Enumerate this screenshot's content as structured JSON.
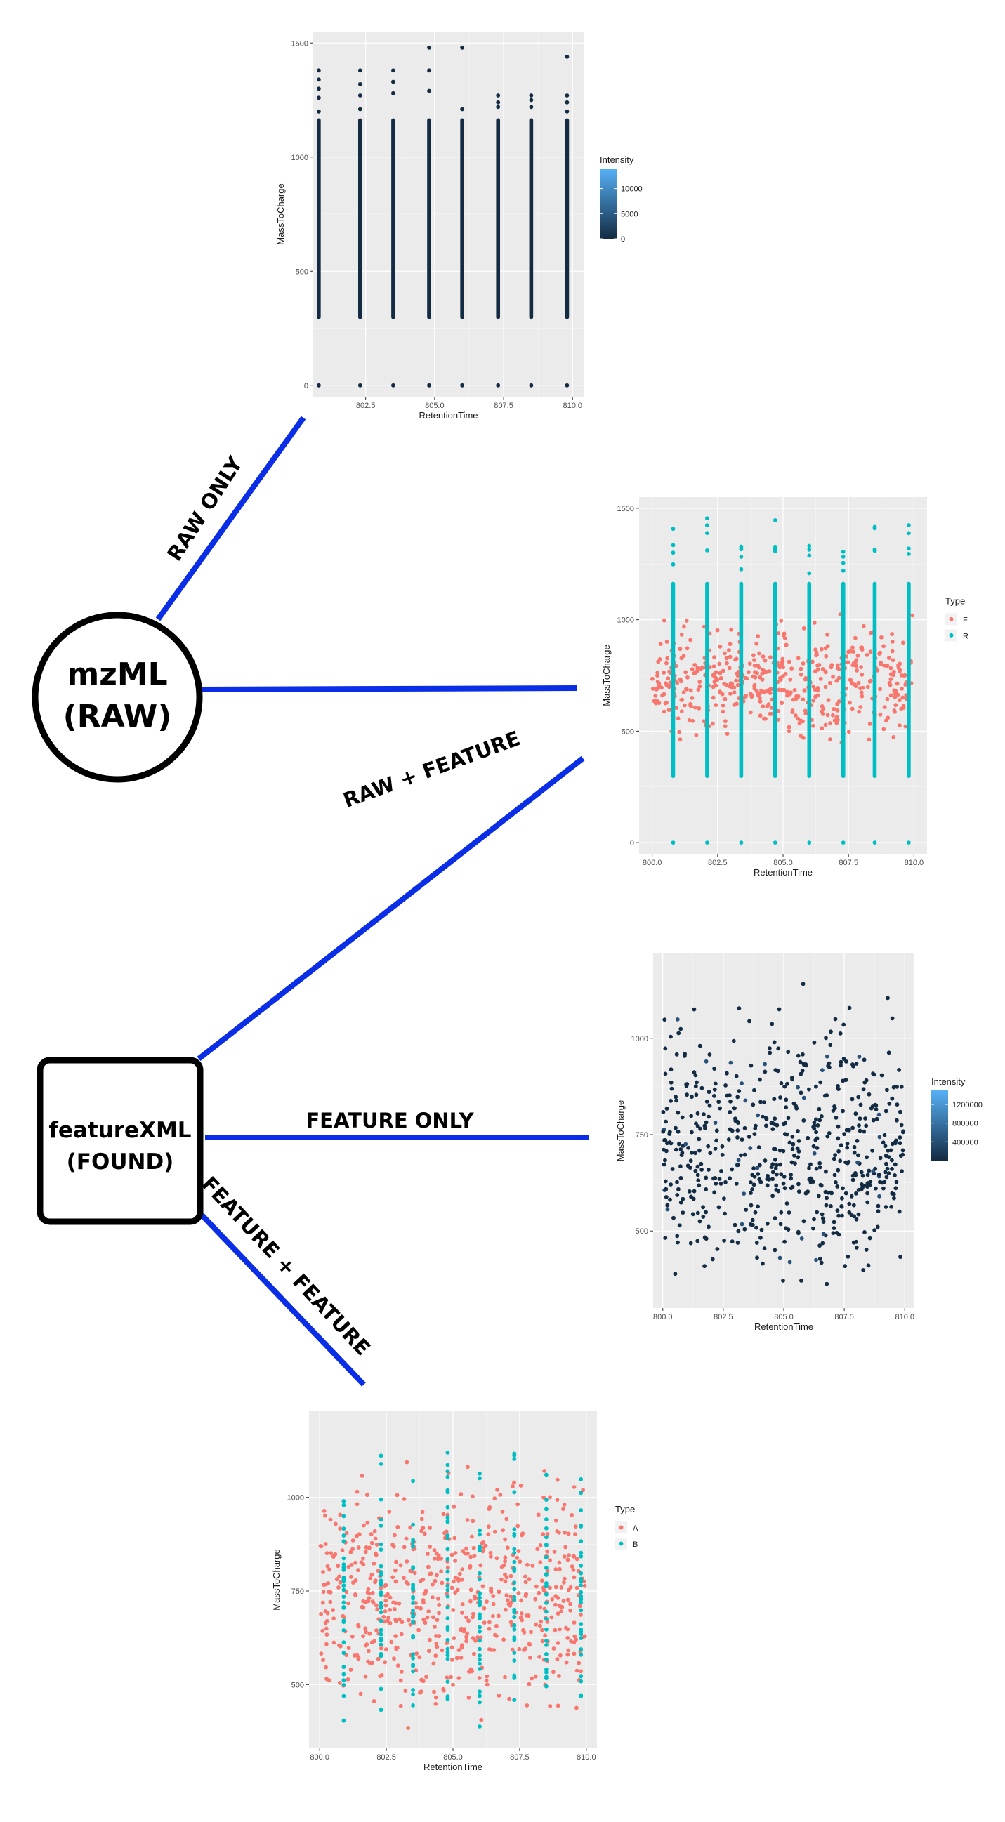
{
  "nodes": {
    "mzml": {
      "line1": "mzML",
      "line2": "(RAW)"
    },
    "featurexml": {
      "line1": "featureXML",
      "line2": "(FOUND)"
    }
  },
  "edges": {
    "raw_only": "RAW ONLY",
    "raw_feature": "RAW + FEATURE",
    "feature_only": "FEATURE ONLY",
    "feature_feature": "FEATURE + FEATURE"
  },
  "colors": {
    "edge": "#0a2ee6",
    "panel": "#ebebeb",
    "grid": "#ffffff",
    "series_salmon": "#f8766d",
    "series_teal": "#00bfc4",
    "intensity_low": "#132b43",
    "intensity_high": "#56b1f7"
  },
  "chart_data": [
    {
      "id": "raw_only",
      "type": "scatter",
      "xlabel": "RetentionTime",
      "ylabel": "MassToCharge",
      "xlim": [
        800.6,
        810.4
      ],
      "ylim": [
        -50,
        1550
      ],
      "xticks": [
        "802.5",
        "805.0",
        "807.5",
        "810.0"
      ],
      "yticks": [
        "0",
        "500",
        "1000",
        "1500"
      ],
      "scans_rt": [
        800.8,
        802.3,
        803.5,
        804.8,
        806.0,
        807.3,
        808.5,
        809.8
      ],
      "band_mz": [
        290,
        1170
      ],
      "outliers_mz": [
        [
          0,
          1200,
          1260,
          1300,
          1340,
          1380
        ],
        [
          0,
          1210,
          1270,
          1320,
          1380
        ],
        [
          0,
          1280,
          1330,
          1380
        ],
        [
          0,
          1290,
          1380,
          1480
        ],
        [
          0,
          1210,
          1480
        ],
        [
          0,
          1220,
          1240,
          1270
        ],
        [
          0,
          1220,
          1250,
          1270
        ],
        [
          0,
          1200,
          1240,
          1270,
          1440
        ]
      ],
      "color_legend": {
        "title": "Intensity",
        "scale": "continuous",
        "range": [
          0,
          14000
        ],
        "ticks": [
          "0",
          "5000",
          "10000"
        ]
      }
    },
    {
      "id": "raw_feature",
      "type": "scatter",
      "xlabel": "RetentionTime",
      "ylabel": "MassToCharge",
      "xlim": [
        799.5,
        810.5
      ],
      "ylim": [
        -50,
        1550
      ],
      "xticks": [
        "800.0",
        "802.5",
        "805.0",
        "807.5",
        "810.0"
      ],
      "yticks": [
        "0",
        "500",
        "1000",
        "1500"
      ],
      "series": [
        {
          "name": "F",
          "kind": "features",
          "count": 520,
          "mz_range": [
            400,
            1060
          ]
        },
        {
          "name": "R",
          "kind": "raw_scans",
          "scans_rt": [
            800.8,
            802.1,
            803.4,
            804.7,
            806.0,
            807.3,
            808.5,
            809.8
          ],
          "band_mz": [
            290,
            1170
          ]
        }
      ],
      "legend": {
        "title": "Type",
        "entries": [
          "F",
          "R"
        ]
      }
    },
    {
      "id": "feature_only",
      "type": "scatter",
      "xlabel": "RetentionTime",
      "ylabel": "MassToCharge",
      "xlim": [
        799.6,
        810.4
      ],
      "ylim": [
        300,
        1220
      ],
      "xticks": [
        "800.0",
        "802.5",
        "805.0",
        "807.5",
        "810.0"
      ],
      "yticks": [
        "500",
        "750",
        "1000"
      ],
      "point_count": 620,
      "mz_range": [
        340,
        1170
      ],
      "color_legend": {
        "title": "Intensity",
        "scale": "continuous",
        "range": [
          0,
          1500000
        ],
        "ticks": [
          "400000",
          "800000",
          "1200000"
        ]
      }
    },
    {
      "id": "feature_feature",
      "type": "scatter",
      "xlabel": "RetentionTime",
      "ylabel": "MassToCharge",
      "xlim": [
        799.6,
        810.4
      ],
      "ylim": [
        330,
        1230
      ],
      "xticks": [
        "800.0",
        "802.5",
        "805.0",
        "807.5",
        "810.0"
      ],
      "yticks": [
        "500",
        "750",
        "1000"
      ],
      "series": [
        {
          "name": "A",
          "kind": "features",
          "count": 620,
          "mz_range": [
            360,
            1170
          ]
        },
        {
          "name": "B",
          "kind": "scan_features",
          "scans_rt": [
            800.9,
            802.3,
            803.5,
            804.8,
            806.0,
            807.3,
            808.5,
            809.8
          ],
          "mz_range": [
            380,
            1150
          ]
        }
      ],
      "legend": {
        "title": "Type",
        "entries": [
          "A",
          "B"
        ]
      }
    }
  ]
}
